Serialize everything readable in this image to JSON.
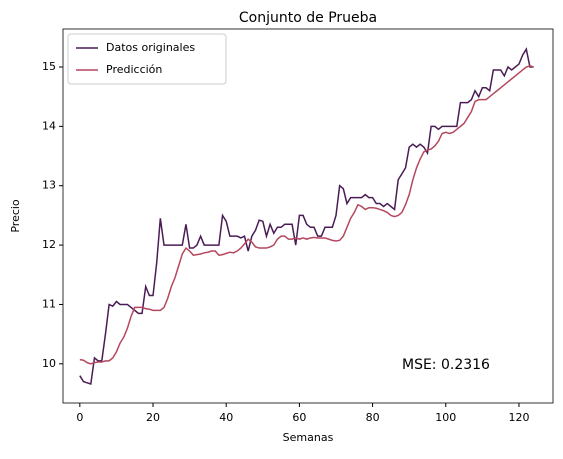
{
  "chart_data": {
    "type": "line",
    "title": "Conjunto de Prueba",
    "x_label": "Semanas",
    "y_label": "Precio",
    "x": [
      0,
      1,
      2,
      3,
      4,
      5,
      6,
      7,
      8,
      9,
      10,
      11,
      12,
      13,
      14,
      15,
      16,
      17,
      18,
      19,
      20,
      21,
      22,
      23,
      24,
      25,
      26,
      27,
      28,
      29,
      30,
      31,
      32,
      33,
      34,
      35,
      36,
      37,
      38,
      39,
      40,
      41,
      42,
      43,
      44,
      45,
      46,
      47,
      48,
      49,
      50,
      51,
      52,
      53,
      54,
      55,
      56,
      57,
      58,
      59,
      60,
      61,
      62,
      63,
      64,
      65,
      66,
      67,
      68,
      69,
      70,
      71,
      72,
      73,
      74,
      75,
      76,
      77,
      78,
      79,
      80,
      81,
      82,
      83,
      84,
      85,
      86,
      87,
      88,
      89,
      90,
      91,
      92,
      93,
      94,
      95,
      96,
      97,
      98,
      99,
      100,
      101,
      102,
      103,
      104,
      105,
      106,
      107,
      108,
      109,
      110,
      111,
      112,
      113,
      114,
      115,
      116,
      117,
      118,
      119,
      120,
      121,
      122,
      123,
      124
    ],
    "series": [
      {
        "name": "Datos originales",
        "color": "#4a1c55",
        "values": [
          9.8,
          9.7,
          9.68,
          9.66,
          10.1,
          10.05,
          10.05,
          10.5,
          11.0,
          10.97,
          11.05,
          11.0,
          11.0,
          11.0,
          10.95,
          10.9,
          10.85,
          10.85,
          11.3,
          11.15,
          11.15,
          11.7,
          12.45,
          12.0,
          12.0,
          12.0,
          12.0,
          12.0,
          12.0,
          12.35,
          11.95,
          11.95,
          12.0,
          12.15,
          12.0,
          12.0,
          12.0,
          12.0,
          12.0,
          12.5,
          12.4,
          12.15,
          12.15,
          12.15,
          12.12,
          12.15,
          11.9,
          12.15,
          12.25,
          12.42,
          12.4,
          12.15,
          12.35,
          12.2,
          12.3,
          12.3,
          12.35,
          12.35,
          12.35,
          12.0,
          12.5,
          12.5,
          12.35,
          12.3,
          12.3,
          12.15,
          12.15,
          12.3,
          12.3,
          12.3,
          12.5,
          13.0,
          12.95,
          12.7,
          12.8,
          12.8,
          12.8,
          12.8,
          12.85,
          12.8,
          12.8,
          12.7,
          12.7,
          12.65,
          12.7,
          12.65,
          12.6,
          13.1,
          13.2,
          13.3,
          13.65,
          13.7,
          13.65,
          13.7,
          13.65,
          13.55,
          14.0,
          14.0,
          13.95,
          14.0,
          14.0,
          14.0,
          14.0,
          14.0,
          14.4,
          14.4,
          14.4,
          14.45,
          14.6,
          14.5,
          14.65,
          14.65,
          14.6,
          14.95,
          14.95,
          14.95,
          14.85,
          15.0,
          14.95,
          15.0,
          15.05,
          15.2,
          15.3,
          15.0,
          15.0
        ]
      },
      {
        "name": "Predicción",
        "color": "#b5475e",
        "values": [
          10.07,
          10.06,
          10.02,
          10.0,
          10.02,
          10.03,
          10.03,
          10.05,
          10.05,
          10.1,
          10.2,
          10.35,
          10.45,
          10.6,
          10.8,
          10.95,
          10.95,
          10.95,
          10.93,
          10.92,
          10.9,
          10.9,
          10.9,
          10.95,
          11.1,
          11.3,
          11.45,
          11.65,
          11.85,
          11.95,
          11.9,
          11.83,
          11.84,
          11.85,
          11.87,
          11.88,
          11.9,
          11.9,
          11.83,
          11.84,
          11.86,
          11.88,
          11.87,
          11.9,
          11.95,
          12.02,
          12.1,
          12.05,
          11.97,
          11.95,
          11.95,
          11.95,
          11.97,
          12.0,
          12.1,
          12.15,
          12.15,
          12.1,
          12.1,
          12.12,
          12.1,
          12.12,
          12.1,
          12.12,
          12.13,
          12.12,
          12.12,
          12.12,
          12.1,
          12.08,
          12.07,
          12.08,
          12.15,
          12.3,
          12.45,
          12.55,
          12.68,
          12.65,
          12.6,
          12.63,
          12.63,
          12.62,
          12.6,
          12.58,
          12.55,
          12.5,
          12.48,
          12.5,
          12.55,
          12.68,
          12.85,
          13.1,
          13.3,
          13.45,
          13.57,
          13.6,
          13.62,
          13.67,
          13.75,
          13.88,
          13.9,
          13.88,
          13.9,
          13.95,
          14.0,
          14.05,
          14.15,
          14.25,
          14.42,
          14.45,
          14.45,
          14.45,
          14.5,
          14.55,
          14.6,
          14.65,
          14.7,
          14.75,
          14.8,
          14.85,
          14.9,
          14.95,
          15.0,
          15.02,
          15.0
        ]
      }
    ],
    "annotation": "MSE: 0.2316",
    "xlim": [
      -4.6,
      129.3
    ],
    "xticks": [
      0,
      20,
      40,
      60,
      80,
      100,
      120
    ],
    "ylim": [
      9.34,
      15.64
    ],
    "yticks": [
      10,
      11,
      12,
      13,
      14,
      15
    ],
    "legend": "upper left",
    "grid": false
  }
}
